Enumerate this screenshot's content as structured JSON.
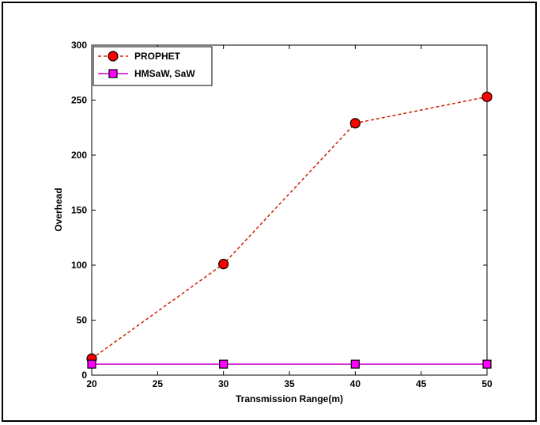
{
  "chart_data": {
    "type": "line",
    "xlabel": "Transmission Range(m)",
    "ylabel": "Overhead",
    "xlim": [
      20,
      50
    ],
    "ylim": [
      0,
      300
    ],
    "xticks": [
      "20",
      "25",
      "30",
      "35",
      "40",
      "45",
      "50"
    ],
    "yticks": [
      "0",
      "50",
      "100",
      "150",
      "200",
      "250",
      "300"
    ],
    "x": [
      20,
      30,
      40,
      50
    ],
    "series": [
      {
        "name": "PROPHET",
        "values": [
          15,
          101,
          229,
          253
        ],
        "color": "#ff0000",
        "edge": "#000000",
        "line_color": "#cc2200",
        "line_style": "dashed",
        "marker": "circle"
      },
      {
        "name": "HMSaW, SaW",
        "values": [
          10,
          10,
          10,
          10
        ],
        "color": "#ff00ff",
        "edge": "#000000",
        "line_color": "#cc00cc",
        "line_style": "solid",
        "marker": "square"
      }
    ],
    "grid": false,
    "legend_position": "top-left"
  }
}
